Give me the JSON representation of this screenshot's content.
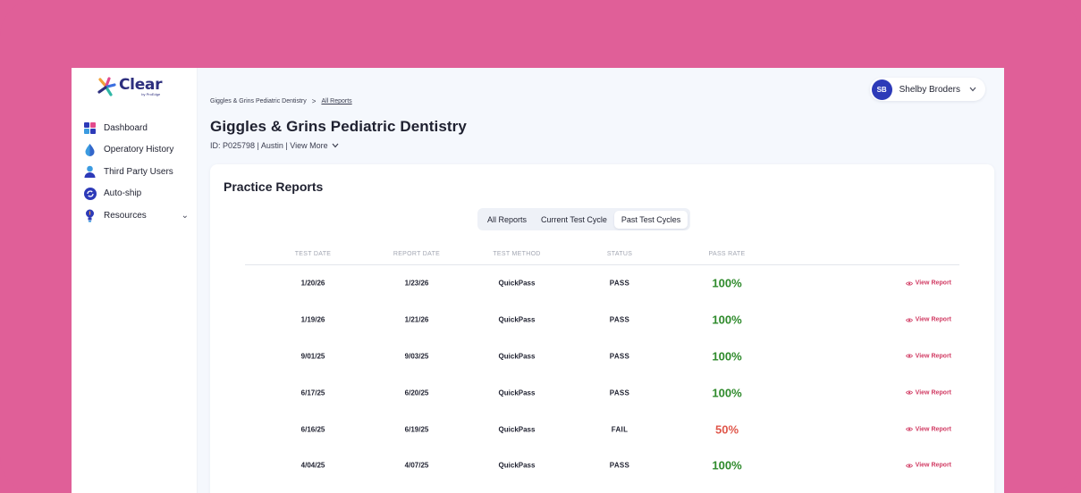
{
  "logo": {
    "word": "Clear",
    "sub": "by ProEdge"
  },
  "sidebar": {
    "items": [
      {
        "label": "Dashboard",
        "icon": "dashboard-icon"
      },
      {
        "label": "Operatory History",
        "icon": "droplet-icon"
      },
      {
        "label": "Third Party Users",
        "icon": "person-icon"
      },
      {
        "label": "Auto-ship",
        "icon": "refresh-icon"
      },
      {
        "label": "Resources",
        "icon": "lightbulb-icon",
        "has_caret": true
      }
    ]
  },
  "breadcrumb": {
    "parent": "Giggles & Grins Pediatric Dentistry",
    "separator": ">",
    "current": "All Reports"
  },
  "page": {
    "title": "Giggles & Grins Pediatric Dentistry",
    "meta": "ID: P025798 | Austin | ",
    "view_more": "View More"
  },
  "user": {
    "initials": "SB",
    "name": "Shelby Broders"
  },
  "reports": {
    "title": "Practice Reports",
    "tabs": [
      {
        "label": "All Reports",
        "active": false
      },
      {
        "label": "Current Test Cycle",
        "active": false
      },
      {
        "label": "Past Test Cycles",
        "active": true
      }
    ],
    "columns": [
      "TEST DATE",
      "REPORT DATE",
      "TEST METHOD",
      "STATUS",
      "PASS RATE"
    ],
    "action_label": "View Report",
    "rows": [
      {
        "test_date": "1/20/26",
        "report_date": "1/23/26",
        "method": "QuickPass",
        "status": "PASS",
        "rate": "100%"
      },
      {
        "test_date": "1/19/26",
        "report_date": "1/21/26",
        "method": "QuickPass",
        "status": "PASS",
        "rate": "100%"
      },
      {
        "test_date": "9/01/25",
        "report_date": "9/03/25",
        "method": "QuickPass",
        "status": "PASS",
        "rate": "100%"
      },
      {
        "test_date": "6/17/25",
        "report_date": "6/20/25",
        "method": "QuickPass",
        "status": "PASS",
        "rate": "100%"
      },
      {
        "test_date": "6/16/25",
        "report_date": "6/19/25",
        "method": "QuickPass",
        "status": "FAIL",
        "rate": "50%"
      },
      {
        "test_date": "4/04/25",
        "report_date": "4/07/25",
        "method": "QuickPass",
        "status": "PASS",
        "rate": "100%"
      }
    ]
  },
  "colors": {
    "background": "#e05f98",
    "brand": "#2d2f7e",
    "avatar": "#2d3ab8",
    "pass": "#2e8a2b",
    "fail": "#e0574b",
    "link": "#d13b63"
  }
}
